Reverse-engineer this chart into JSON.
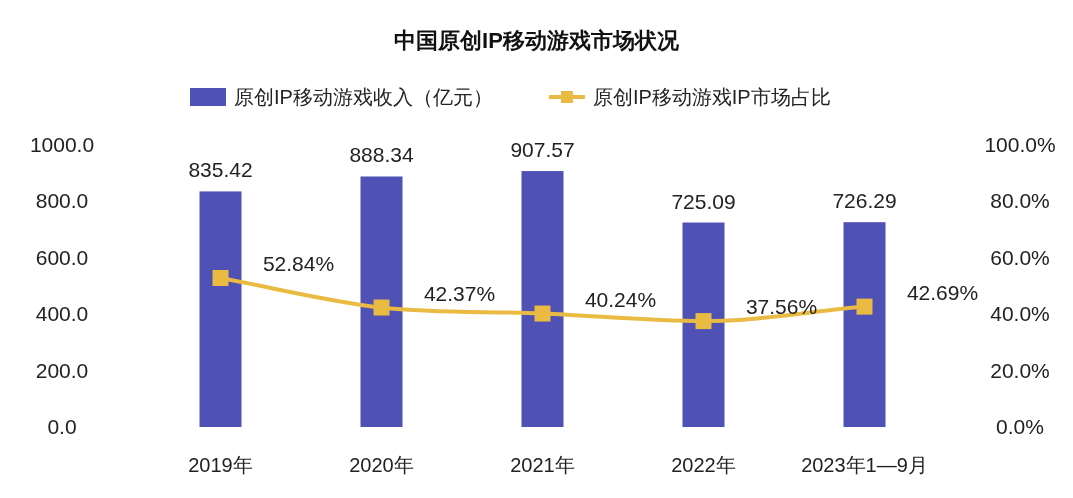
{
  "chart_data": {
    "type": "bar",
    "title": "中国原创IP移动游戏市场状况",
    "categories": [
      "2019年",
      "2020年",
      "2021年",
      "2022年",
      "2023年1—9月"
    ],
    "series": [
      {
        "name": "原创IP移动游戏收入（亿元）",
        "color": "#4f51b5",
        "values": [
          835.42,
          888.34,
          907.57,
          725.09,
          726.29
        ],
        "value_labels": [
          "835.42",
          "888.34",
          "907.57",
          "725.09",
          "726.29"
        ]
      },
      {
        "name": "原创IP移动游戏IP市场占比",
        "type": "line",
        "axis": "y2",
        "color": "#e9bb43",
        "marker": "square",
        "line_style": "solid",
        "values": [
          52.84,
          42.37,
          40.24,
          37.56,
          42.69
        ],
        "value_labels": [
          "52.84%",
          "42.37%",
          "40.24%",
          "37.56%",
          "42.69%"
        ]
      }
    ],
    "ylim": [
      0,
      1000
    ],
    "yticks": [
      {
        "value": 0,
        "label": "0.0"
      },
      {
        "value": 200,
        "label": "200.0"
      },
      {
        "value": 400,
        "label": "400.0"
      },
      {
        "value": 600,
        "label": "600.0"
      },
      {
        "value": 800,
        "label": "800.0"
      },
      {
        "value": 1000,
        "label": "1000.0"
      }
    ],
    "y2lim": [
      0,
      100
    ],
    "y2ticks": [
      {
        "value": 0,
        "label": "0.0%"
      },
      {
        "value": 20,
        "label": "20.0%"
      },
      {
        "value": 40,
        "label": "40.0%"
      },
      {
        "value": 60,
        "label": "60.0%"
      },
      {
        "value": 80,
        "label": "80.0%"
      },
      {
        "value": 100,
        "label": "100.0%"
      }
    ],
    "legend": "top",
    "grid": false
  }
}
